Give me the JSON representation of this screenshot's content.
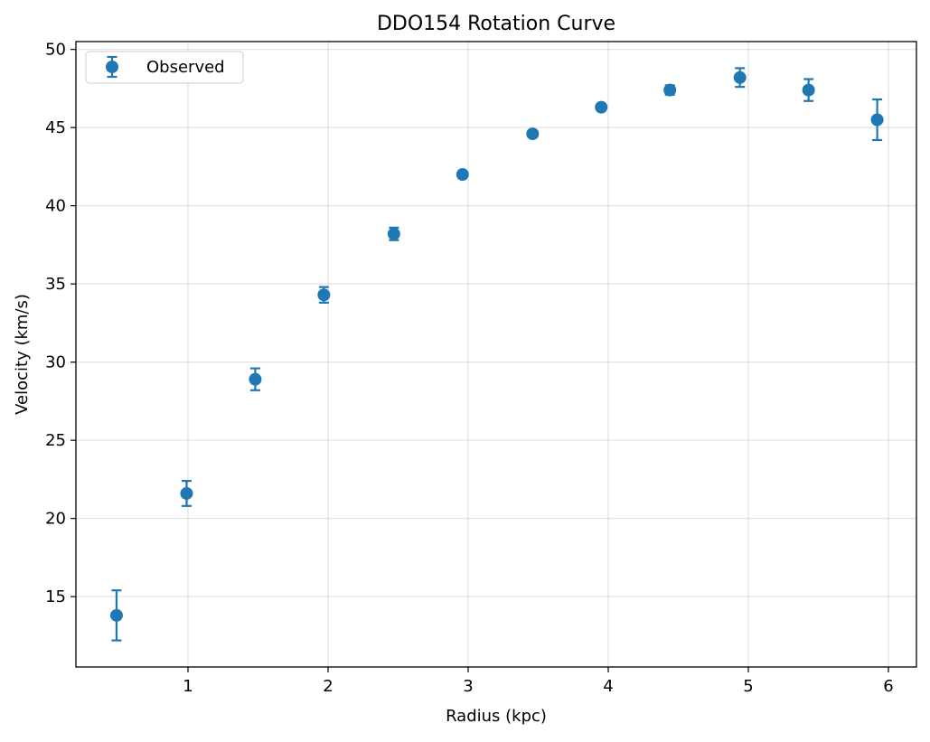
{
  "chart_data": {
    "type": "scatter",
    "title": "DDO154 Rotation Curve",
    "xlabel": "Radius (kpc)",
    "ylabel": "Velocity (km/s)",
    "xlim": [
      0.2,
      6.2
    ],
    "ylim": [
      10.5,
      50.5
    ],
    "xticks": [
      1,
      2,
      3,
      4,
      5,
      6
    ],
    "yticks": [
      15,
      20,
      25,
      30,
      35,
      40,
      45,
      50
    ],
    "xtick_labels": [
      "1",
      "2",
      "3",
      "4",
      "5",
      "6"
    ],
    "ytick_labels": [
      "15",
      "20",
      "25",
      "30",
      "35",
      "40",
      "45",
      "50"
    ],
    "grid": true,
    "legend": {
      "placement": "upper-left",
      "entries": [
        "Observed"
      ]
    },
    "series": [
      {
        "name": "Observed",
        "color": "#1f77b4",
        "marker": "circle",
        "x": [
          0.49,
          0.99,
          1.48,
          1.97,
          2.47,
          2.96,
          3.46,
          3.95,
          4.44,
          4.94,
          5.43,
          5.92
        ],
        "y": [
          13.8,
          21.6,
          28.9,
          34.3,
          38.2,
          42.0,
          44.6,
          46.3,
          47.4,
          48.2,
          47.4,
          45.5
        ],
        "yerr": [
          1.6,
          0.8,
          0.7,
          0.5,
          0.4,
          0.2,
          0.2,
          0.2,
          0.3,
          0.6,
          0.7,
          1.3
        ]
      }
    ]
  }
}
